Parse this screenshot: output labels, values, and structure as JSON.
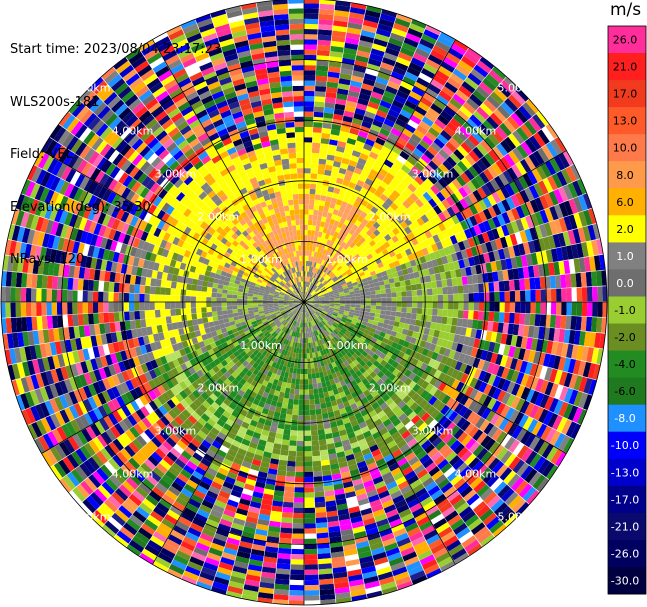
{
  "header": {
    "lines": [
      "Start time: 2023/08/04 23:17:23",
      "WLS200s-181",
      "Field: VEL",
      "Elevation(deg): 35.30",
      "NRays: 120"
    ]
  },
  "colorbar": {
    "unit": "m/s",
    "levels": [
      {
        "label": "26.0",
        "color": "#ff2e9a"
      },
      {
        "label": "21.0",
        "color": "#ff1f1f"
      },
      {
        "label": "17.0",
        "color": "#f23a1e"
      },
      {
        "label": "13.0",
        "color": "#ff5a2a"
      },
      {
        "label": "10.0",
        "color": "#ff7a4a"
      },
      {
        "label": "8.0",
        "color": "#ff9a4a"
      },
      {
        "label": "6.0",
        "color": "#ffb000"
      },
      {
        "label": "2.0",
        "color": "#ffff00"
      },
      {
        "label": "1.0",
        "color": "#808080"
      },
      {
        "label": "0.0",
        "color": "#6e6e6e"
      },
      {
        "label": "-1.0",
        "color": "#9acd32"
      },
      {
        "label": "-2.0",
        "color": "#6b8e23"
      },
      {
        "label": "-4.0",
        "color": "#228b22"
      },
      {
        "label": "-6.0",
        "color": "#1f7a1f"
      },
      {
        "label": "-8.0",
        "color": "#1e90ff"
      },
      {
        "label": "-10.0",
        "color": "#0000ff"
      },
      {
        "label": "-13.0",
        "color": "#0000cd"
      },
      {
        "label": "-17.0",
        "color": "#00008b"
      },
      {
        "label": "-21.0",
        "color": "#0a0a6e"
      },
      {
        "label": "-26.0",
        "color": "#000060"
      },
      {
        "label": "-30.0",
        "color": "#000040"
      }
    ]
  },
  "chart_data": {
    "type": "heatmap",
    "projection": "polar PPI",
    "field": "VEL",
    "units": "m/s",
    "range_rings": [
      "1.00km",
      "2.00km",
      "3.00km",
      "4.00km",
      "5.00km"
    ],
    "range_ring_values_km": [
      1,
      2,
      3,
      4,
      5
    ],
    "max_range_km": 5.0,
    "n_rays": 120,
    "spokes_deg": [
      0,
      30,
      60,
      90,
      120,
      150,
      180,
      210,
      240,
      270,
      300,
      330
    ],
    "regions": [
      {
        "sector": "north",
        "range_km": [
          0.3,
          2.3
        ],
        "dominant_values": "2.0 to 10.0 (yellow/orange)"
      },
      {
        "sector": "south",
        "range_km": [
          0.3,
          2.8
        ],
        "dominant_values": "-1.0 to -6.0 (greens)"
      },
      {
        "sector": "east-west band",
        "range_km": [
          0.0,
          1.5
        ],
        "dominant_values": "0.0 to 1.0 (gray)"
      },
      {
        "sector": "all",
        "range_km": [
          2.5,
          5.0
        ],
        "dominant_values": "noise, full range -30.0 to 26.0"
      }
    ]
  }
}
